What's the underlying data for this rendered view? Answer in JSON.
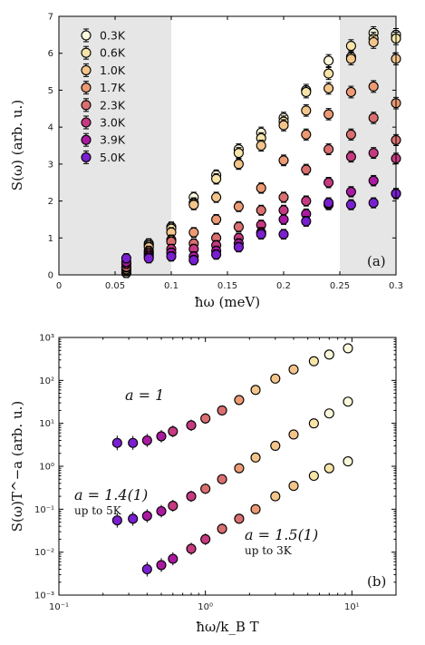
{
  "chart_data": [
    {
      "type": "scatter",
      "panel_label": "(a)",
      "xlabel": "ħω (meV)",
      "ylabel": "S(ω) (arb. u.)",
      "xlim": [
        0,
        0.3
      ],
      "ylim": [
        0,
        7
      ],
      "xticks": [
        "0",
        "0.05",
        "0.1",
        "0.15",
        "0.2",
        "0.25",
        "0.3"
      ],
      "yticks": [
        "0",
        "1",
        "2",
        "3",
        "4",
        "5",
        "6",
        "7"
      ],
      "shaded_x_ranges": [
        [
          0,
          0.1
        ],
        [
          0.25,
          0.3
        ]
      ],
      "legend_placement": "top-left",
      "x": [
        0.06,
        0.08,
        0.1,
        0.12,
        0.14,
        0.16,
        0.18,
        0.2,
        0.22,
        0.24,
        0.26,
        0.28,
        0.3
      ],
      "series": [
        {
          "name": "0.3K",
          "color": "#fbf8dc",
          "values": [
            0.05,
            0.85,
            1.3,
            2.1,
            2.7,
            3.4,
            3.85,
            4.25,
            5.0,
            5.8,
            5.9,
            6.55,
            6.5
          ]
        },
        {
          "name": "0.6K",
          "color": "#f7e4a8",
          "values": [
            0.1,
            0.8,
            1.25,
            1.95,
            2.6,
            3.3,
            3.7,
            4.15,
            4.95,
            5.45,
            6.2,
            6.4,
            6.4
          ]
        },
        {
          "name": "1.0K",
          "color": "#f4c58a",
          "values": [
            0.15,
            0.75,
            1.15,
            1.9,
            2.1,
            3.0,
            3.5,
            4.05,
            4.45,
            5.05,
            5.85,
            6.3,
            5.85
          ]
        },
        {
          "name": "1.7K",
          "color": "#ec9a74",
          "values": [
            0.2,
            0.65,
            0.95,
            1.15,
            1.5,
            1.85,
            2.35,
            3.1,
            3.8,
            4.35,
            4.95,
            5.1,
            4.65
          ]
        },
        {
          "name": "2.3K",
          "color": "#da6f70",
          "values": [
            0.22,
            0.6,
            0.9,
            0.85,
            1.0,
            1.3,
            1.75,
            2.1,
            2.85,
            3.4,
            3.8,
            4.25,
            3.65
          ]
        },
        {
          "name": "3.0K",
          "color": "#c53a80",
          "values": [
            0.3,
            0.55,
            0.7,
            0.7,
            0.8,
            1.0,
            1.35,
            1.75,
            2.0,
            2.5,
            3.2,
            3.3,
            3.15
          ]
        },
        {
          "name": "3.9K",
          "color": "#a91aa0",
          "values": [
            0.35,
            0.5,
            0.6,
            0.5,
            0.65,
            0.85,
            1.15,
            1.5,
            1.65,
            1.9,
            2.25,
            2.55,
            2.2
          ]
        },
        {
          "name": "5.0K",
          "color": "#7a1fd0",
          "values": [
            0.45,
            0.45,
            0.5,
            0.4,
            0.55,
            0.75,
            1.1,
            1.1,
            1.45,
            1.95,
            1.9,
            1.95,
            2.2
          ]
        }
      ]
    },
    {
      "type": "scatter",
      "panel_label": "(b)",
      "xlabel": "ħω/k_B T",
      "ylabel": "S(ω)T^−a (arb. u.)",
      "xscale": "log",
      "yscale": "log",
      "xlim": [
        0.1,
        20
      ],
      "ylim": [
        0.001,
        1000
      ],
      "xticks": [
        "10⁻¹",
        "10⁰",
        "10¹"
      ],
      "yticks": [
        "10⁻³",
        "10⁻²",
        "10⁻¹",
        "10⁰",
        "10¹",
        "10²",
        "10³"
      ],
      "annotations": [
        {
          "text": "a = 1",
          "sub": ""
        },
        {
          "text": "a = 1.4(1)",
          "sub": "up to 5K"
        },
        {
          "text": "a = 1.5(1)",
          "sub": "up to 3K"
        }
      ],
      "curves": [
        {
          "group": "a = 1",
          "x": [
            0.25,
            0.32,
            0.4,
            0.5,
            0.6,
            0.8,
            1.0,
            1.3,
            1.7,
            2.2,
            3.0,
            4.0,
            5.5,
            7.0,
            9.4
          ],
          "values": [
            3.5,
            3.5,
            4.0,
            5.0,
            6.5,
            9.0,
            13,
            20,
            35,
            60,
            110,
            180,
            280,
            400,
            560
          ]
        },
        {
          "group": "a = 1.4(1)",
          "x": [
            0.25,
            0.32,
            0.4,
            0.5,
            0.6,
            0.8,
            1.0,
            1.3,
            1.7,
            2.2,
            3.0,
            4.0,
            5.5,
            7.0,
            9.4
          ],
          "values": [
            0.055,
            0.06,
            0.07,
            0.09,
            0.12,
            0.2,
            0.3,
            0.5,
            0.9,
            1.6,
            3.0,
            5.5,
            10,
            17,
            32
          ]
        },
        {
          "group": "a = 1.5(1)",
          "x": [
            0.4,
            0.5,
            0.6,
            0.8,
            1.0,
            1.3,
            1.7,
            2.2,
            3.0,
            4.0,
            5.5,
            7.0,
            9.4
          ],
          "values": [
            0.004,
            0.005,
            0.007,
            0.012,
            0.02,
            0.035,
            0.06,
            0.1,
            0.2,
            0.35,
            0.6,
            0.9,
            1.3
          ]
        }
      ]
    }
  ]
}
